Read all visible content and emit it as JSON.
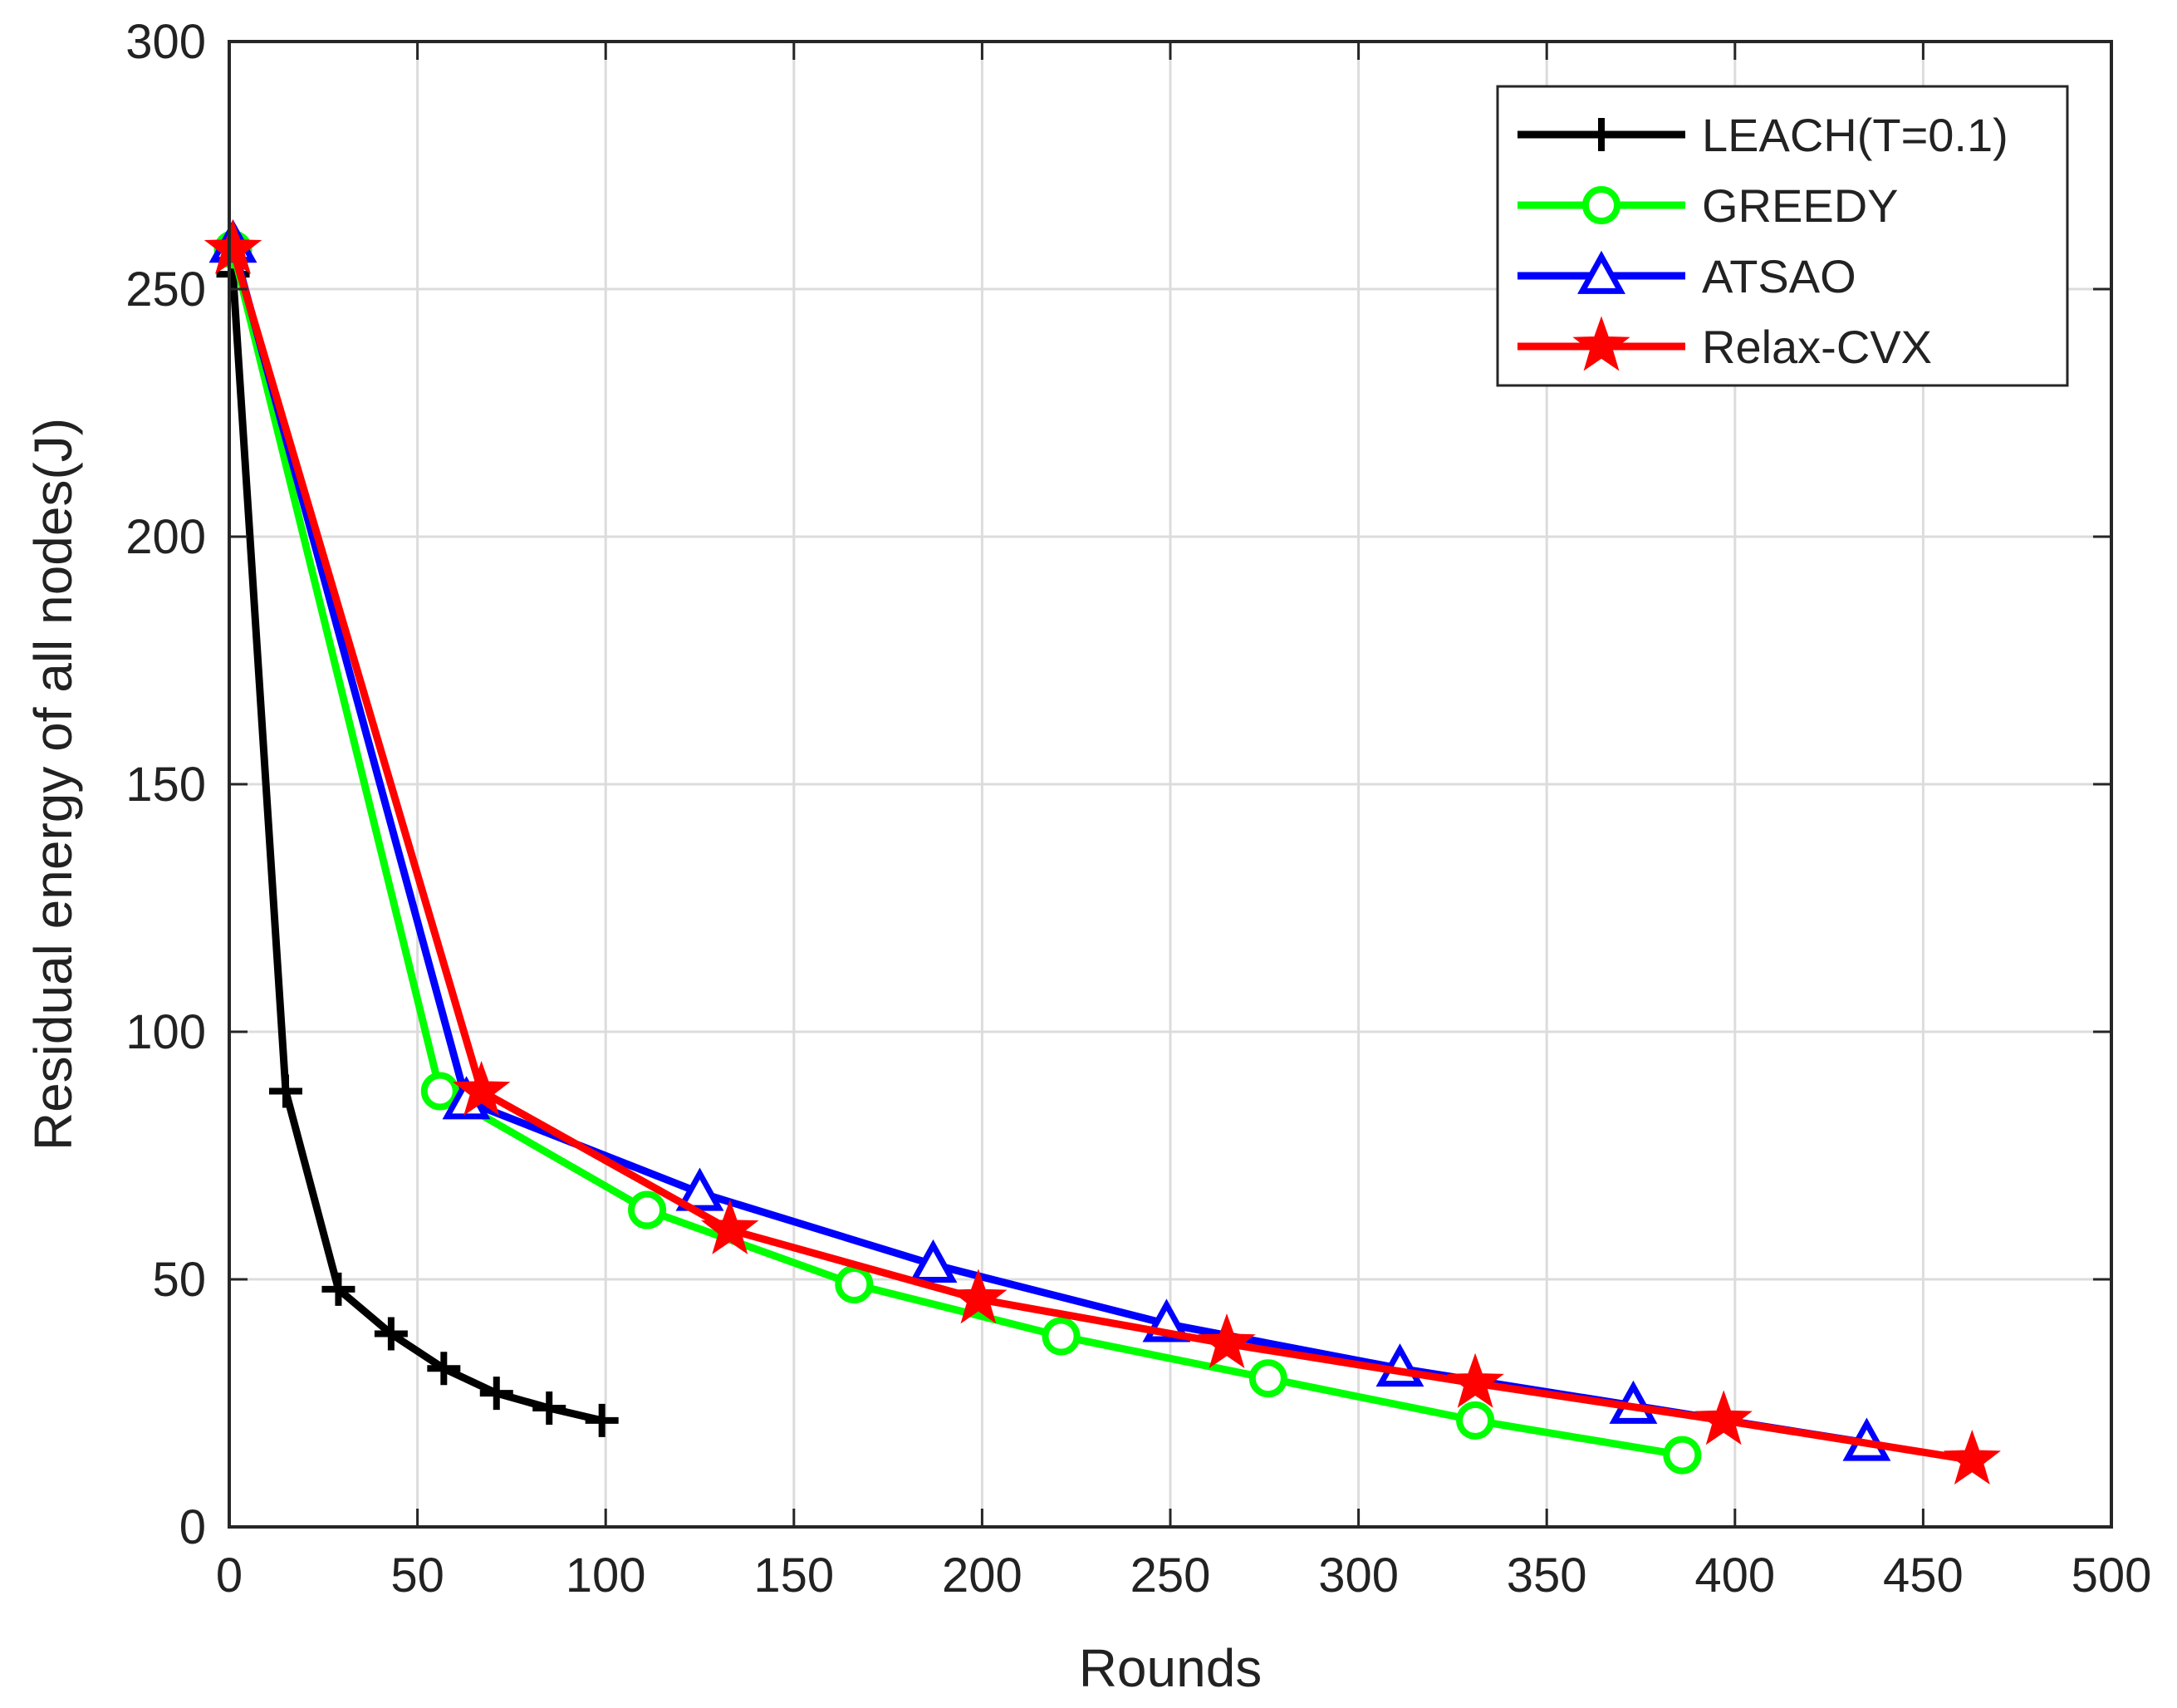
{
  "chart_data": {
    "type": "line",
    "title": "",
    "xlabel": "Rounds",
    "ylabel": "Residual energy of all nodes(J)",
    "xlim": [
      0,
      500
    ],
    "ylim": [
      0,
      300
    ],
    "xticks": [
      0,
      50,
      100,
      150,
      200,
      250,
      300,
      350,
      400,
      450,
      500
    ],
    "yticks": [
      0,
      50,
      100,
      150,
      200,
      250,
      300
    ],
    "grid": true,
    "legend_position": "top-right",
    "series": [
      {
        "name": "LEACH(T=0.1)",
        "color": "#000000",
        "marker": "plus",
        "x": [
          1,
          15,
          29,
          43,
          57,
          71,
          85,
          99
        ],
        "y": [
          253,
          88,
          48,
          39,
          32,
          27,
          24,
          21.5
        ]
      },
      {
        "name": "GREEDY",
        "color": "#00ff00",
        "marker": "circle",
        "x": [
          1,
          56,
          111,
          166,
          221,
          276,
          331,
          386
        ],
        "y": [
          258,
          88,
          64,
          49,
          38.5,
          30,
          21.5,
          14.5
        ]
      },
      {
        "name": "ATSAO",
        "color": "#0000ff",
        "marker": "triangle",
        "x": [
          1,
          63,
          125,
          187,
          249,
          311,
          373,
          435
        ],
        "y": [
          259,
          86,
          67.5,
          53,
          41,
          32,
          24.5,
          17
        ]
      },
      {
        "name": "Relax-CVX",
        "color": "#ff0000",
        "marker": "star",
        "x": [
          1,
          67,
          133,
          199,
          265,
          331,
          397,
          463
        ],
        "y": [
          258,
          88,
          60,
          46,
          37,
          29,
          21.5,
          13.5
        ]
      }
    ]
  }
}
